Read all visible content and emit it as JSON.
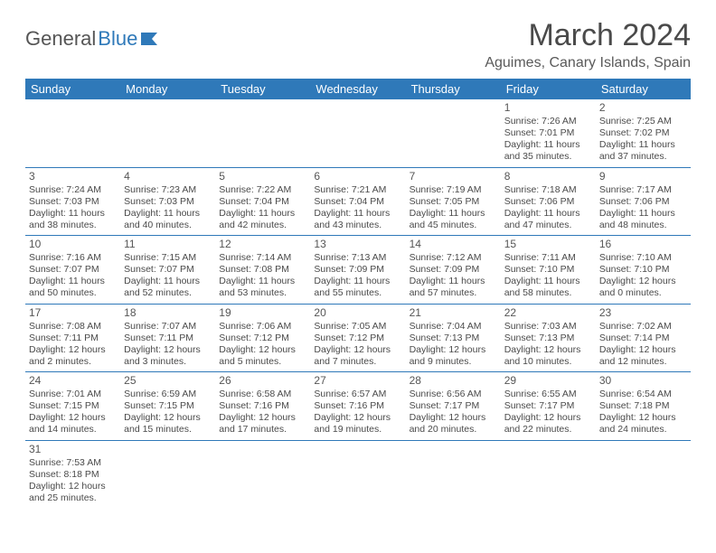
{
  "logo": {
    "text1": "General",
    "text2": "Blue"
  },
  "title": "March 2024",
  "location": "Aguimes, Canary Islands, Spain",
  "colors": {
    "header_bg": "#2f79b9",
    "header_fg": "#ffffff",
    "text": "#4a4a4a",
    "rule": "#2f79b9"
  },
  "weekdays": [
    "Sunday",
    "Monday",
    "Tuesday",
    "Wednesday",
    "Thursday",
    "Friday",
    "Saturday"
  ],
  "weeks": [
    [
      null,
      null,
      null,
      null,
      null,
      {
        "d": "1",
        "sr": "Sunrise: 7:26 AM",
        "ss": "Sunset: 7:01 PM",
        "dl": "Daylight: 11 hours and 35 minutes."
      },
      {
        "d": "2",
        "sr": "Sunrise: 7:25 AM",
        "ss": "Sunset: 7:02 PM",
        "dl": "Daylight: 11 hours and 37 minutes."
      }
    ],
    [
      {
        "d": "3",
        "sr": "Sunrise: 7:24 AM",
        "ss": "Sunset: 7:03 PM",
        "dl": "Daylight: 11 hours and 38 minutes."
      },
      {
        "d": "4",
        "sr": "Sunrise: 7:23 AM",
        "ss": "Sunset: 7:03 PM",
        "dl": "Daylight: 11 hours and 40 minutes."
      },
      {
        "d": "5",
        "sr": "Sunrise: 7:22 AM",
        "ss": "Sunset: 7:04 PM",
        "dl": "Daylight: 11 hours and 42 minutes."
      },
      {
        "d": "6",
        "sr": "Sunrise: 7:21 AM",
        "ss": "Sunset: 7:04 PM",
        "dl": "Daylight: 11 hours and 43 minutes."
      },
      {
        "d": "7",
        "sr": "Sunrise: 7:19 AM",
        "ss": "Sunset: 7:05 PM",
        "dl": "Daylight: 11 hours and 45 minutes."
      },
      {
        "d": "8",
        "sr": "Sunrise: 7:18 AM",
        "ss": "Sunset: 7:06 PM",
        "dl": "Daylight: 11 hours and 47 minutes."
      },
      {
        "d": "9",
        "sr": "Sunrise: 7:17 AM",
        "ss": "Sunset: 7:06 PM",
        "dl": "Daylight: 11 hours and 48 minutes."
      }
    ],
    [
      {
        "d": "10",
        "sr": "Sunrise: 7:16 AM",
        "ss": "Sunset: 7:07 PM",
        "dl": "Daylight: 11 hours and 50 minutes."
      },
      {
        "d": "11",
        "sr": "Sunrise: 7:15 AM",
        "ss": "Sunset: 7:07 PM",
        "dl": "Daylight: 11 hours and 52 minutes."
      },
      {
        "d": "12",
        "sr": "Sunrise: 7:14 AM",
        "ss": "Sunset: 7:08 PM",
        "dl": "Daylight: 11 hours and 53 minutes."
      },
      {
        "d": "13",
        "sr": "Sunrise: 7:13 AM",
        "ss": "Sunset: 7:09 PM",
        "dl": "Daylight: 11 hours and 55 minutes."
      },
      {
        "d": "14",
        "sr": "Sunrise: 7:12 AM",
        "ss": "Sunset: 7:09 PM",
        "dl": "Daylight: 11 hours and 57 minutes."
      },
      {
        "d": "15",
        "sr": "Sunrise: 7:11 AM",
        "ss": "Sunset: 7:10 PM",
        "dl": "Daylight: 11 hours and 58 minutes."
      },
      {
        "d": "16",
        "sr": "Sunrise: 7:10 AM",
        "ss": "Sunset: 7:10 PM",
        "dl": "Daylight: 12 hours and 0 minutes."
      }
    ],
    [
      {
        "d": "17",
        "sr": "Sunrise: 7:08 AM",
        "ss": "Sunset: 7:11 PM",
        "dl": "Daylight: 12 hours and 2 minutes."
      },
      {
        "d": "18",
        "sr": "Sunrise: 7:07 AM",
        "ss": "Sunset: 7:11 PM",
        "dl": "Daylight: 12 hours and 3 minutes."
      },
      {
        "d": "19",
        "sr": "Sunrise: 7:06 AM",
        "ss": "Sunset: 7:12 PM",
        "dl": "Daylight: 12 hours and 5 minutes."
      },
      {
        "d": "20",
        "sr": "Sunrise: 7:05 AM",
        "ss": "Sunset: 7:12 PM",
        "dl": "Daylight: 12 hours and 7 minutes."
      },
      {
        "d": "21",
        "sr": "Sunrise: 7:04 AM",
        "ss": "Sunset: 7:13 PM",
        "dl": "Daylight: 12 hours and 9 minutes."
      },
      {
        "d": "22",
        "sr": "Sunrise: 7:03 AM",
        "ss": "Sunset: 7:13 PM",
        "dl": "Daylight: 12 hours and 10 minutes."
      },
      {
        "d": "23",
        "sr": "Sunrise: 7:02 AM",
        "ss": "Sunset: 7:14 PM",
        "dl": "Daylight: 12 hours and 12 minutes."
      }
    ],
    [
      {
        "d": "24",
        "sr": "Sunrise: 7:01 AM",
        "ss": "Sunset: 7:15 PM",
        "dl": "Daylight: 12 hours and 14 minutes."
      },
      {
        "d": "25",
        "sr": "Sunrise: 6:59 AM",
        "ss": "Sunset: 7:15 PM",
        "dl": "Daylight: 12 hours and 15 minutes."
      },
      {
        "d": "26",
        "sr": "Sunrise: 6:58 AM",
        "ss": "Sunset: 7:16 PM",
        "dl": "Daylight: 12 hours and 17 minutes."
      },
      {
        "d": "27",
        "sr": "Sunrise: 6:57 AM",
        "ss": "Sunset: 7:16 PM",
        "dl": "Daylight: 12 hours and 19 minutes."
      },
      {
        "d": "28",
        "sr": "Sunrise: 6:56 AM",
        "ss": "Sunset: 7:17 PM",
        "dl": "Daylight: 12 hours and 20 minutes."
      },
      {
        "d": "29",
        "sr": "Sunrise: 6:55 AM",
        "ss": "Sunset: 7:17 PM",
        "dl": "Daylight: 12 hours and 22 minutes."
      },
      {
        "d": "30",
        "sr": "Sunrise: 6:54 AM",
        "ss": "Sunset: 7:18 PM",
        "dl": "Daylight: 12 hours and 24 minutes."
      }
    ],
    [
      {
        "d": "31",
        "sr": "Sunrise: 7:53 AM",
        "ss": "Sunset: 8:18 PM",
        "dl": "Daylight: 12 hours and 25 minutes."
      },
      null,
      null,
      null,
      null,
      null,
      null
    ]
  ]
}
